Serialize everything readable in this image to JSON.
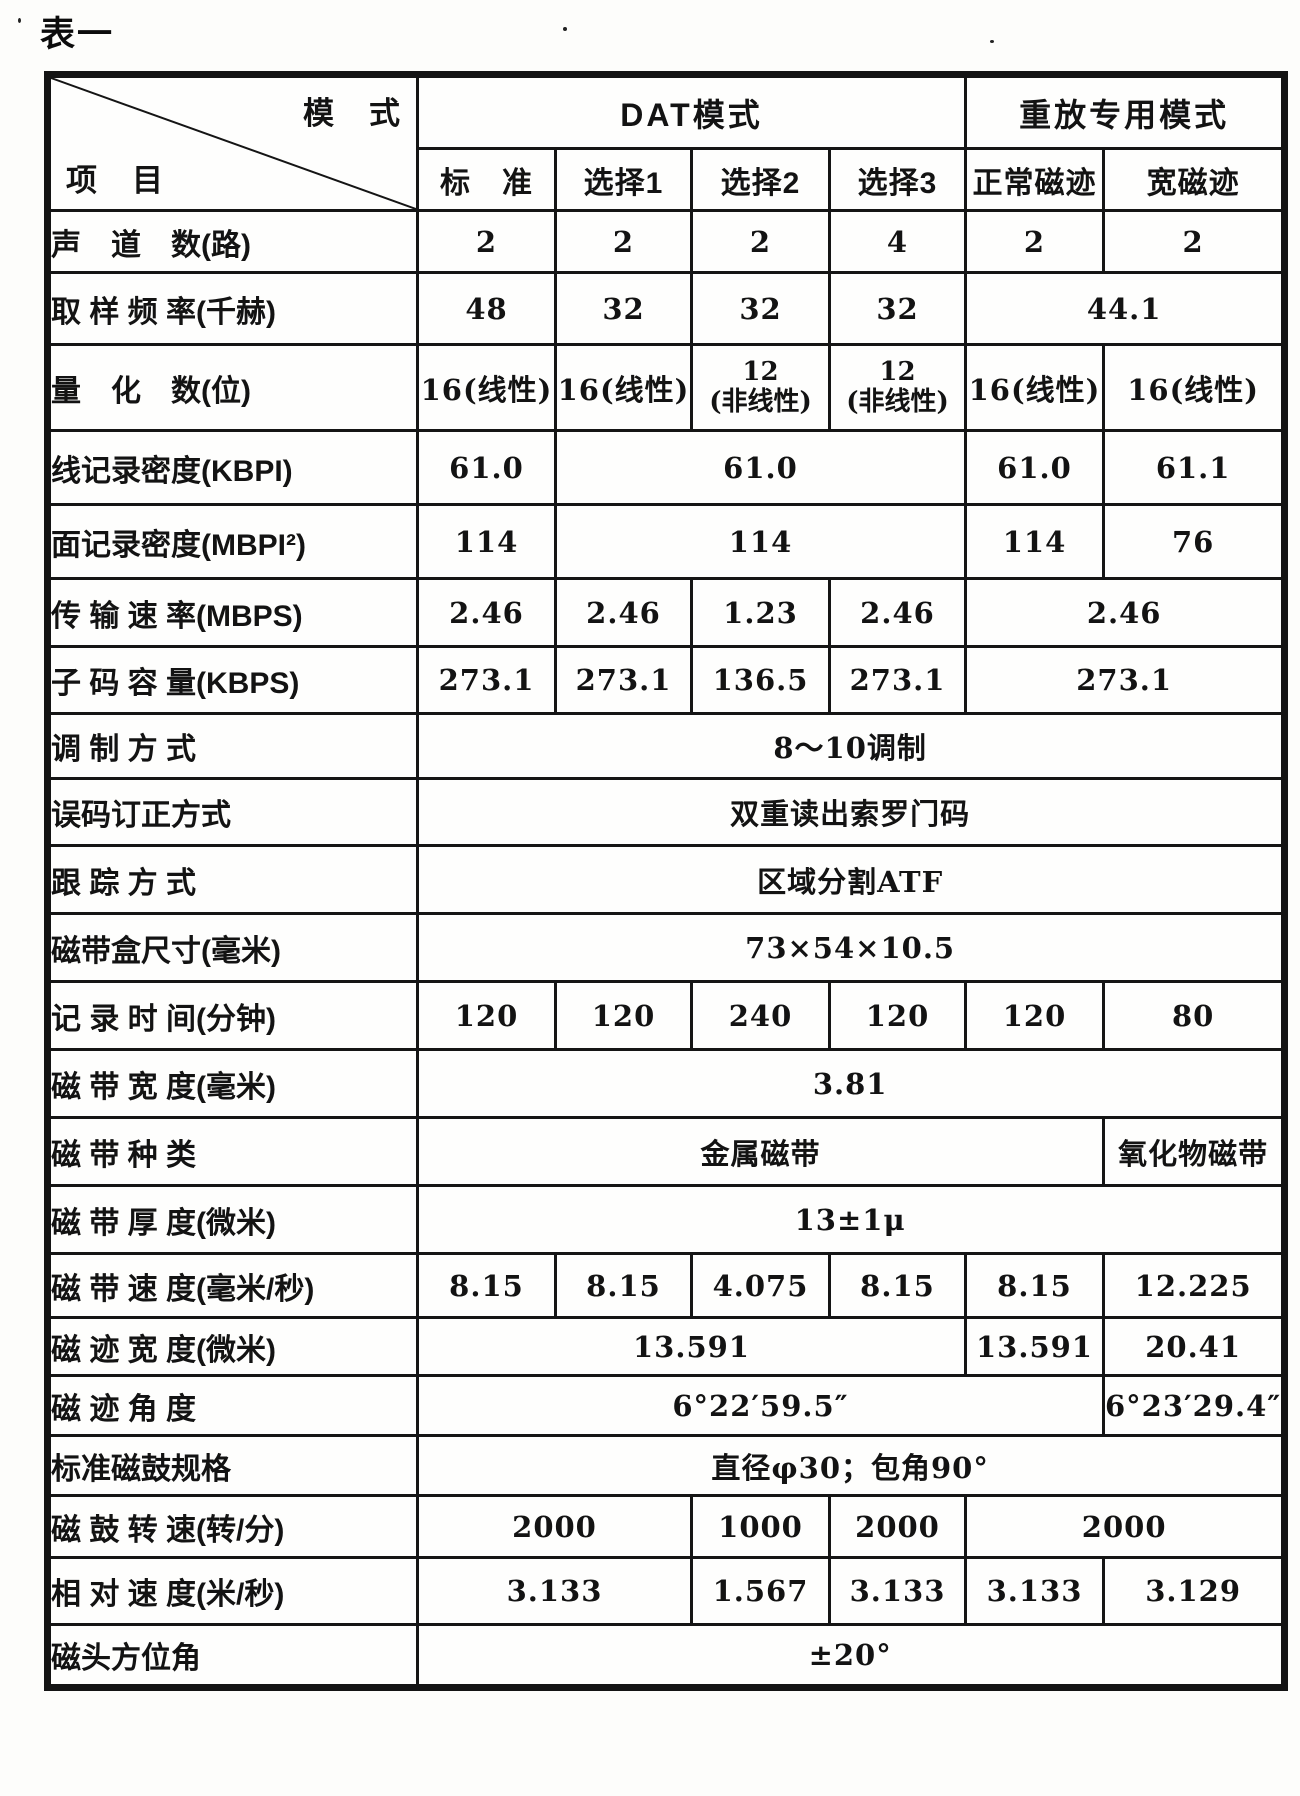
{
  "page_title": "表一",
  "colors": {
    "ink": "#141414",
    "paper": "#fdfdfb"
  },
  "table": {
    "corner": {
      "mode_label": "模　式",
      "item_label": "项　目"
    },
    "groups": [
      {
        "label": "DAT模式",
        "span": 4
      },
      {
        "label": "重放专用模式",
        "span": 2
      }
    ],
    "columns": [
      "标　准",
      "选择1",
      "选择2",
      "选择3",
      "正常磁迹",
      "宽磁迹"
    ],
    "rows": [
      {
        "label": "声　道　数(路)",
        "cells": [
          {
            "t": "2"
          },
          {
            "t": "2"
          },
          {
            "t": "2"
          },
          {
            "t": "4"
          },
          {
            "t": "2"
          },
          {
            "t": "2"
          }
        ]
      },
      {
        "label": "取 样 频 率(千赫)",
        "cells": [
          {
            "t": "48"
          },
          {
            "t": "32"
          },
          {
            "t": "32"
          },
          {
            "t": "32"
          },
          {
            "t": "44.1",
            "span": 2
          }
        ]
      },
      {
        "label": "量　化　数(位)",
        "cells": [
          {
            "t": "16(线性)"
          },
          {
            "t": "16(线性)"
          },
          {
            "t": "12\n(非线性)"
          },
          {
            "t": "12\n(非线性)"
          },
          {
            "t": "16(线性)"
          },
          {
            "t": "16(线性)"
          }
        ]
      },
      {
        "label": "线记录密度(KBPI)",
        "cells": [
          {
            "t": "61.0"
          },
          {
            "t": "61.0",
            "span": 3
          },
          {
            "t": "61.0"
          },
          {
            "t": "61.1"
          }
        ]
      },
      {
        "label": "面记录密度(MBPI²)",
        "cells": [
          {
            "t": "114"
          },
          {
            "t": "114",
            "span": 3
          },
          {
            "t": "114"
          },
          {
            "t": "76"
          }
        ]
      },
      {
        "label": "传 输 速 率(MBPS)",
        "cells": [
          {
            "t": "2.46"
          },
          {
            "t": "2.46"
          },
          {
            "t": "1.23"
          },
          {
            "t": "2.46"
          },
          {
            "t": "2.46",
            "span": 2
          }
        ]
      },
      {
        "label": "子 码 容 量(KBPS)",
        "cells": [
          {
            "t": "273.1"
          },
          {
            "t": "273.1"
          },
          {
            "t": "136.5"
          },
          {
            "t": "273.1"
          },
          {
            "t": "273.1",
            "span": 2
          }
        ]
      },
      {
        "label": "调 制 方 式",
        "cells": [
          {
            "t": "8～10调制",
            "span": 6
          }
        ]
      },
      {
        "label": "误码订正方式",
        "cells": [
          {
            "t": "双重读出索罗门码",
            "span": 6
          }
        ]
      },
      {
        "label": "跟 踪 方 式",
        "cells": [
          {
            "t": "区域分割ATF",
            "span": 6
          }
        ]
      },
      {
        "label": "磁带盒尺寸(毫米)",
        "cells": [
          {
            "t": "73×54×10.5",
            "span": 6
          }
        ]
      },
      {
        "label": "记 录 时 间(分钟)",
        "cells": [
          {
            "t": "120"
          },
          {
            "t": "120"
          },
          {
            "t": "240"
          },
          {
            "t": "120"
          },
          {
            "t": "120"
          },
          {
            "t": "80"
          }
        ]
      },
      {
        "label": "磁 带 宽 度(毫米)",
        "cells": [
          {
            "t": "3.81",
            "span": 6
          }
        ]
      },
      {
        "label": "磁 带 种 类",
        "cells": [
          {
            "t": "金属磁带",
            "span": 5
          },
          {
            "t": "氧化物磁带"
          }
        ]
      },
      {
        "label": "磁 带 厚 度(微米)",
        "cells": [
          {
            "t": "13±1μ",
            "span": 6
          }
        ]
      },
      {
        "label": "磁 带 速 度(毫米/秒)",
        "cells": [
          {
            "t": "8.15"
          },
          {
            "t": "8.15"
          },
          {
            "t": "4.075"
          },
          {
            "t": "8.15"
          },
          {
            "t": "8.15"
          },
          {
            "t": "12.225"
          }
        ]
      },
      {
        "label": "磁 迹 宽 度(微米)",
        "cells": [
          {
            "t": "13.591",
            "span": 4
          },
          {
            "t": "13.591"
          },
          {
            "t": "20.41"
          }
        ]
      },
      {
        "label": "磁 迹 角 度",
        "cells": [
          {
            "t": "6°22′59.5″",
            "span": 5
          },
          {
            "t": "6°23′29.4″"
          }
        ]
      },
      {
        "label": "标准磁鼓规格",
        "cells": [
          {
            "t": "直径φ30；包角90°",
            "span": 6
          }
        ]
      },
      {
        "label": "磁 鼓 转 速(转/分)",
        "cells": [
          {
            "t": "2000",
            "span": 2
          },
          {
            "t": "1000"
          },
          {
            "t": "2000"
          },
          {
            "t": "2000",
            "span": 2
          }
        ]
      },
      {
        "label": "相 对 速 度(米/秒)",
        "cells": [
          {
            "t": "3.133",
            "span": 2
          },
          {
            "t": "1.567"
          },
          {
            "t": "3.133"
          },
          {
            "t": "3.133"
          },
          {
            "t": "3.129"
          }
        ]
      },
      {
        "label": "磁头方位角",
        "cells": [
          {
            "t": "±20°",
            "span": 6
          }
        ]
      }
    ]
  }
}
